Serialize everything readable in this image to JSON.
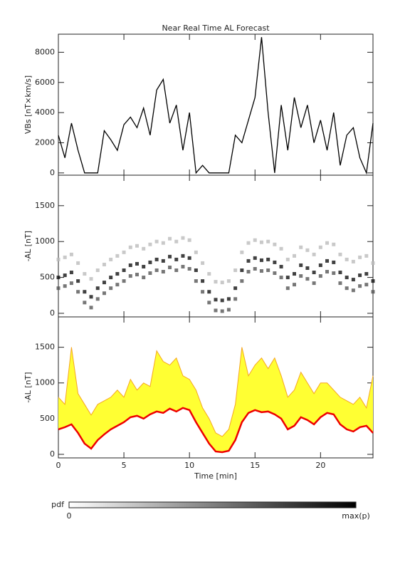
{
  "chart_data": [
    {
      "type": "line",
      "title": "Near Real Time AL Forecast",
      "ylabel": "VBs [nT×km/s]",
      "x": [
        0,
        0.5,
        1,
        1.5,
        2,
        2.5,
        3,
        3.5,
        4,
        4.5,
        5,
        5.5,
        6,
        6.5,
        7,
        7.5,
        8,
        8.5,
        9,
        9.5,
        10,
        10.5,
        11,
        11.5,
        12,
        12.5,
        13,
        13.5,
        14,
        14.5,
        15,
        15.5,
        16,
        16.5,
        17,
        17.5,
        18,
        18.5,
        19,
        19.5,
        20,
        20.5,
        21,
        21.5,
        22,
        22.5,
        23,
        23.5,
        24
      ],
      "series": [
        {
          "color": "#000000",
          "values": [
            2500,
            1000,
            3300,
            1500,
            0,
            0,
            0,
            2800,
            2200,
            1500,
            3200,
            3700,
            3000,
            4300,
            2500,
            5500,
            6200,
            3300,
            4500,
            1500,
            4000,
            0,
            500,
            0,
            0,
            0,
            0,
            2500,
            2000,
            3500,
            5000,
            9000,
            4000,
            0,
            4500,
            1500,
            5000,
            3000,
            4500,
            2000,
            3500,
            1500,
            4000,
            500,
            2500,
            3000,
            1000,
            0,
            3300
          ]
        }
      ],
      "xlim": [
        0,
        24
      ],
      "ylim": [
        -150,
        9200
      ],
      "yticks": [
        0,
        2000,
        4000,
        6000,
        8000
      ]
    },
    {
      "type": "scatter",
      "ylabel": "-AL [nT]",
      "x": [
        0,
        0.5,
        1,
        1.5,
        2,
        2.5,
        3,
        3.5,
        4,
        4.5,
        5,
        5.5,
        6,
        6.5,
        7,
        7.5,
        8,
        8.5,
        9,
        9.5,
        10,
        10.5,
        11,
        11.5,
        12,
        12.5,
        13,
        13.5,
        14,
        14.5,
        15,
        15.5,
        16,
        16.5,
        17,
        17.5,
        18,
        18.5,
        19,
        19.5,
        20,
        20.5,
        21,
        21.5,
        22,
        22.5,
        23,
        23.5,
        24
      ],
      "series": [
        {
          "color": "#bbbbbb",
          "values": [
            750,
            780,
            820,
            700,
            550,
            480,
            600,
            680,
            750,
            800,
            850,
            920,
            940,
            900,
            960,
            1000,
            980,
            1040,
            1000,
            1050,
            1020,
            850,
            700,
            550,
            440,
            430,
            450,
            600,
            850,
            980,
            1020,
            990,
            1000,
            960,
            900,
            750,
            800,
            920,
            880,
            820,
            920,
            980,
            960,
            820,
            750,
            720,
            780,
            800,
            700
          ]
        },
        {
          "color": "#555555",
          "values": [
            350,
            380,
            420,
            300,
            150,
            80,
            200,
            280,
            350,
            400,
            450,
            520,
            540,
            500,
            560,
            600,
            580,
            640,
            600,
            650,
            620,
            450,
            300,
            150,
            40,
            30,
            50,
            200,
            450,
            580,
            620,
            590,
            600,
            560,
            500,
            350,
            400,
            520,
            480,
            420,
            520,
            580,
            560,
            420,
            350,
            320,
            380,
            400,
            300
          ]
        },
        {
          "color": "#111111",
          "values": [
            500,
            530,
            570,
            450,
            300,
            230,
            350,
            430,
            500,
            550,
            600,
            670,
            690,
            650,
            710,
            750,
            730,
            790,
            750,
            800,
            770,
            600,
            450,
            300,
            190,
            180,
            200,
            350,
            600,
            730,
            770,
            740,
            750,
            710,
            650,
            500,
            550,
            670,
            630,
            570,
            670,
            730,
            710,
            570,
            500,
            470,
            530,
            550,
            450
          ]
        }
      ],
      "xlim": [
        0,
        24
      ],
      "ylim": [
        -50,
        1925
      ],
      "yticks": [
        0,
        500,
        1000,
        1500
      ]
    },
    {
      "type": "band",
      "ylabel": "-AL [nT]",
      "xlabel": "Time [min]",
      "x": [
        0,
        0.5,
        1,
        1.5,
        2,
        2.5,
        3,
        3.5,
        4,
        4.5,
        5,
        5.5,
        6,
        6.5,
        7,
        7.5,
        8,
        8.5,
        9,
        9.5,
        10,
        10.5,
        11,
        11.5,
        12,
        12.5,
        13,
        13.5,
        14,
        14.5,
        15,
        15.5,
        16,
        16.5,
        17,
        17.5,
        18,
        18.5,
        19,
        19.5,
        20,
        20.5,
        21,
        21.5,
        22,
        22.5,
        23,
        23.5,
        24
      ],
      "fill": "#ffff33",
      "series": [
        {
          "color": "#f5a623",
          "values": [
            800,
            700,
            1500,
            850,
            700,
            550,
            700,
            750,
            800,
            900,
            800,
            1050,
            900,
            1000,
            950,
            1450,
            1300,
            1250,
            1350,
            1100,
            1050,
            900,
            650,
            500,
            300,
            250,
            350,
            700,
            1500,
            1100,
            1250,
            1350,
            1200,
            1350,
            1100,
            800,
            900,
            1150,
            1000,
            850,
            1000,
            1000,
            900,
            800,
            750,
            700,
            800,
            650,
            1100
          ]
        },
        {
          "color": "#ee0000",
          "values": [
            350,
            380,
            420,
            300,
            150,
            80,
            200,
            280,
            350,
            400,
            450,
            520,
            540,
            500,
            560,
            600,
            580,
            640,
            600,
            650,
            620,
            450,
            300,
            150,
            40,
            30,
            50,
            200,
            450,
            580,
            620,
            590,
            600,
            560,
            500,
            350,
            400,
            520,
            480,
            420,
            520,
            580,
            560,
            420,
            350,
            320,
            380,
            400,
            300
          ]
        }
      ],
      "xlim": [
        0,
        24
      ],
      "ylim": [
        -50,
        1925
      ],
      "yticks": [
        0,
        500,
        1000,
        1500
      ],
      "xticks": [
        0,
        5,
        10,
        15,
        20
      ]
    }
  ],
  "colorbar": {
    "label": "pdf",
    "min_label": "0",
    "max_label": "max(p)"
  }
}
